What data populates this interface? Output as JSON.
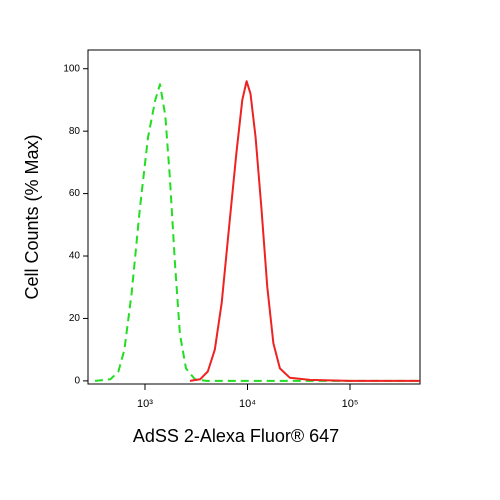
{
  "chart_data": {
    "type": "line",
    "xlabel": "AdSS 2-Alexa Fluor® 647",
    "ylabel": "Cell Counts (% Max)",
    "xscale": "log",
    "xlim": [
      278,
      482000
    ],
    "ylim": [
      -1,
      106
    ],
    "xticks": [
      {
        "value": 1000,
        "label": "10³"
      },
      {
        "value": 10000,
        "label": "10⁴"
      },
      {
        "value": 100000,
        "label": "10⁵"
      }
    ],
    "yticks": [
      0,
      20,
      40,
      60,
      80,
      100
    ],
    "series": [
      {
        "color": "#22dd22",
        "dash": true,
        "x": [
          325,
          460,
          550,
          630,
          740,
          890,
          1070,
          1260,
          1400,
          1580,
          1750,
          1960,
          2190,
          2510,
          3070,
          4000,
          10000,
          100000,
          480000
        ],
        "values": [
          0,
          0.5,
          3,
          10,
          28,
          55,
          78,
          90,
          95,
          85,
          65,
          38,
          15,
          4,
          0.5,
          0,
          0,
          0,
          0
        ]
      },
      {
        "color": "#ee2222",
        "dash": false,
        "x": [
          2750,
          3450,
          4100,
          4800,
          5600,
          6650,
          7800,
          8900,
          9800,
          10700,
          12000,
          13700,
          15600,
          17900,
          20700,
          25900,
          40500,
          100000,
          480000
        ],
        "values": [
          0,
          0.5,
          3,
          10,
          25,
          50,
          73,
          90,
          96,
          92,
          78,
          55,
          30,
          12,
          4,
          1,
          0.3,
          0,
          0
        ]
      }
    ]
  }
}
